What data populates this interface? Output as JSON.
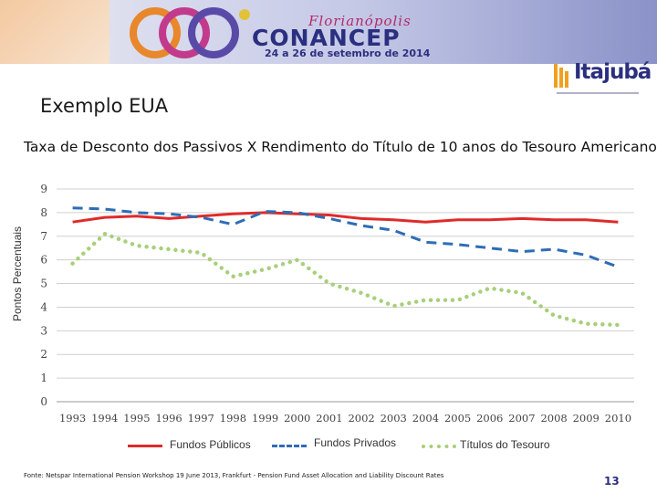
{
  "header": {
    "city": "Florianópolis",
    "brand": "CONANCEP",
    "dates": "24 a 26 de setembro de 2014",
    "sponsor": "Itajubá"
  },
  "slide_title": "Exemplo EUA",
  "footer": {
    "source": "Fonte: Netspar International Pension Workshop 19 June 2013, Frankfurt - Pension Fund Asset Allocation and Liability Discount Rates",
    "page_number": "13"
  },
  "colors": {
    "public": "#e02a2a",
    "private": "#2e6db5",
    "treasury": "#a8cf7a",
    "grid": "#d0d0d0",
    "axis_text": "#444444"
  },
  "chart_data": {
    "type": "line",
    "title": "Taxa de Desconto dos Passivos X Rendimento do Título de 10 anos do Tesouro Americano",
    "xlabel": "",
    "ylabel": "Pontos Percentuais",
    "ylim": [
      0,
      9
    ],
    "yticks": [
      "0",
      "1",
      "2",
      "3",
      "4",
      "5",
      "6",
      "7",
      "8",
      "9"
    ],
    "grid": true,
    "legend_position": "bottom",
    "categories": [
      "1993",
      "1994",
      "1995",
      "1996",
      "1997",
      "1998",
      "1999",
      "2000",
      "2001",
      "2002",
      "2003",
      "2004",
      "2005",
      "2006",
      "2007",
      "2008",
      "2009",
      "2010"
    ],
    "series": [
      {
        "name": "Fundos Públicos",
        "style": "solid",
        "color": "#e02a2a",
        "values": [
          7.6,
          7.8,
          7.85,
          7.75,
          7.85,
          7.95,
          8.0,
          7.95,
          7.9,
          7.75,
          7.7,
          7.6,
          7.7,
          7.7,
          7.75,
          7.7,
          7.7,
          7.6
        ]
      },
      {
        "name": "Fundos Privados",
        "style": "dashed",
        "color": "#2e6db5",
        "values": [
          8.2,
          8.15,
          8.0,
          7.95,
          7.8,
          7.5,
          8.05,
          8.0,
          7.75,
          7.45,
          7.25,
          6.75,
          6.65,
          6.5,
          6.35,
          6.45,
          6.2,
          5.7
        ]
      },
      {
        "name": "Títulos do Tesouro",
        "style": "dotted",
        "color": "#a8cf7a",
        "values": [
          5.85,
          7.1,
          6.6,
          6.45,
          6.3,
          5.3,
          5.6,
          6.0,
          5.0,
          4.6,
          4.05,
          4.3,
          4.3,
          4.8,
          4.6,
          3.65,
          3.3,
          3.25
        ]
      }
    ]
  }
}
